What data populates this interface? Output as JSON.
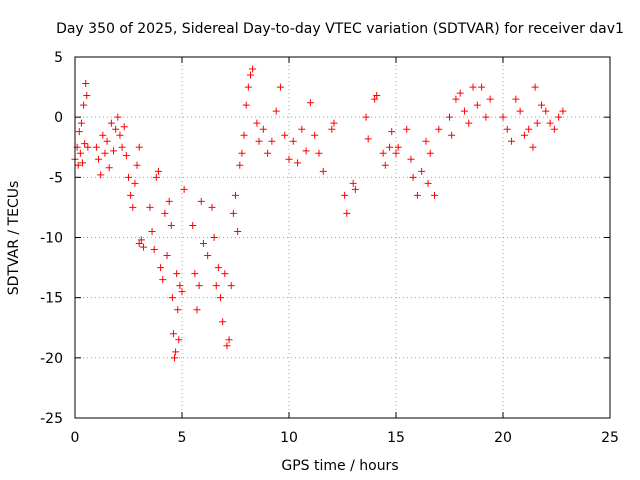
{
  "chart_data": {
    "type": "scatter",
    "title": "Day 350 of 2025, Sidereal Day-to-day VTEC variation (SDTVAR) for receiver dav1",
    "xlabel": "GPS time / hours",
    "ylabel": "SDTVAR / TECUs",
    "xlim": [
      0,
      25
    ],
    "ylim": [
      -25,
      5
    ],
    "xticks": [
      0,
      5,
      10,
      15,
      20,
      25
    ],
    "yticks": [
      5,
      0,
      -5,
      -10,
      -15,
      -20,
      -25
    ],
    "grid": true,
    "marker": "+",
    "series": [
      {
        "name": "SDTVAR",
        "color": "#ff0000",
        "points": [
          [
            0.0,
            -3.5
          ],
          [
            0.1,
            -2.5
          ],
          [
            0.15,
            -4.0
          ],
          [
            0.2,
            -1.2
          ],
          [
            0.25,
            -3.0
          ],
          [
            0.3,
            -0.5
          ],
          [
            0.35,
            -3.8
          ],
          [
            0.4,
            1.0
          ],
          [
            0.45,
            -2.2
          ],
          [
            0.5,
            2.8
          ],
          [
            0.55,
            1.8
          ],
          [
            0.6,
            -2.5
          ],
          [
            1.0,
            -2.5
          ],
          [
            1.1,
            -3.5
          ],
          [
            1.2,
            -4.8
          ],
          [
            1.3,
            -1.5
          ],
          [
            1.4,
            -3.0
          ],
          [
            1.5,
            -2.0
          ],
          [
            1.6,
            -4.2
          ],
          [
            1.7,
            -0.5
          ],
          [
            1.8,
            -2.8
          ],
          [
            1.9,
            -1.0
          ],
          [
            2.0,
            0.0
          ],
          [
            2.1,
            -1.5
          ],
          [
            2.2,
            -2.5
          ],
          [
            2.3,
            -0.8
          ],
          [
            2.4,
            -3.2
          ],
          [
            2.5,
            -5.0
          ],
          [
            2.6,
            -6.5
          ],
          [
            2.7,
            -7.5
          ],
          [
            2.8,
            -5.5
          ],
          [
            2.9,
            -4.0
          ],
          [
            3.0,
            -2.5
          ],
          [
            3.0,
            -10.5
          ],
          [
            3.1,
            -10.2
          ],
          [
            3.2,
            -10.8
          ],
          [
            3.5,
            -7.5
          ],
          [
            3.6,
            -9.5
          ],
          [
            3.7,
            -11.0
          ],
          [
            3.8,
            -5.0
          ],
          [
            3.9,
            -4.5
          ],
          [
            4.0,
            -12.5
          ],
          [
            4.1,
            -13.5
          ],
          [
            4.2,
            -8.0
          ],
          [
            4.3,
            -11.5
          ],
          [
            4.4,
            -7.0
          ],
          [
            4.5,
            -9.0
          ],
          [
            4.55,
            -15.0
          ],
          [
            4.6,
            -18.0
          ],
          [
            4.65,
            -20.0
          ],
          [
            4.7,
            -19.5
          ],
          [
            4.75,
            -13.0
          ],
          [
            4.8,
            -16.0
          ],
          [
            4.85,
            -18.5
          ],
          [
            4.9,
            -14.0
          ],
          [
            5.0,
            -14.5
          ],
          [
            5.1,
            -6.0
          ],
          [
            5.5,
            -9.0
          ],
          [
            5.6,
            -13.0
          ],
          [
            5.7,
            -16.0
          ],
          [
            5.8,
            -14.0
          ],
          [
            5.9,
            -7.0
          ],
          [
            6.0,
            -10.5
          ],
          [
            6.2,
            -11.5
          ],
          [
            6.4,
            -7.5
          ],
          [
            6.5,
            -10.0
          ],
          [
            6.6,
            -14.0
          ],
          [
            6.7,
            -12.5
          ],
          [
            6.8,
            -15.0
          ],
          [
            6.9,
            -17.0
          ],
          [
            7.0,
            -13.0
          ],
          [
            7.1,
            -19.0
          ],
          [
            7.2,
            -18.5
          ],
          [
            7.3,
            -14.0
          ],
          [
            7.4,
            -8.0
          ],
          [
            7.5,
            -6.5
          ],
          [
            7.6,
            -9.5
          ],
          [
            7.7,
            -4.0
          ],
          [
            7.8,
            -3.0
          ],
          [
            7.9,
            -1.5
          ],
          [
            8.0,
            1.0
          ],
          [
            8.1,
            2.5
          ],
          [
            8.2,
            3.5
          ],
          [
            8.3,
            4.0
          ],
          [
            8.5,
            -0.5
          ],
          [
            8.6,
            -2.0
          ],
          [
            8.8,
            -1.0
          ],
          [
            9.0,
            -3.0
          ],
          [
            9.2,
            -2.0
          ],
          [
            9.4,
            0.5
          ],
          [
            9.6,
            2.5
          ],
          [
            9.8,
            -1.5
          ],
          [
            10.0,
            -3.5
          ],
          [
            10.2,
            -2.0
          ],
          [
            10.4,
            -3.8
          ],
          [
            10.6,
            -1.0
          ],
          [
            10.8,
            -2.8
          ],
          [
            11.0,
            1.2
          ],
          [
            11.2,
            -1.5
          ],
          [
            11.4,
            -3.0
          ],
          [
            11.6,
            -4.5
          ],
          [
            12.0,
            -1.0
          ],
          [
            12.1,
            -0.5
          ],
          [
            12.6,
            -6.5
          ],
          [
            12.7,
            -8.0
          ],
          [
            13.0,
            -5.5
          ],
          [
            13.1,
            -6.0
          ],
          [
            13.6,
            0.0
          ],
          [
            13.7,
            -1.8
          ],
          [
            14.0,
            1.5
          ],
          [
            14.1,
            1.8
          ],
          [
            14.4,
            -3.0
          ],
          [
            14.5,
            -4.0
          ],
          [
            14.7,
            -2.5
          ],
          [
            14.8,
            -1.2
          ],
          [
            15.0,
            -3.0
          ],
          [
            15.1,
            -2.5
          ],
          [
            15.5,
            -1.0
          ],
          [
            15.7,
            -3.5
          ],
          [
            15.8,
            -5.0
          ],
          [
            16.0,
            -6.5
          ],
          [
            16.2,
            -4.5
          ],
          [
            16.4,
            -2.0
          ],
          [
            16.5,
            -5.5
          ],
          [
            16.6,
            -3.0
          ],
          [
            16.8,
            -6.5
          ],
          [
            17.0,
            -1.0
          ],
          [
            17.5,
            0.0
          ],
          [
            17.6,
            -1.5
          ],
          [
            17.8,
            1.5
          ],
          [
            18.0,
            2.0
          ],
          [
            18.2,
            0.5
          ],
          [
            18.4,
            -0.5
          ],
          [
            18.6,
            2.5
          ],
          [
            18.8,
            1.0
          ],
          [
            19.0,
            2.5
          ],
          [
            19.2,
            0.0
          ],
          [
            19.4,
            1.5
          ],
          [
            20.0,
            0.0
          ],
          [
            20.2,
            -1.0
          ],
          [
            20.4,
            -2.0
          ],
          [
            20.6,
            1.5
          ],
          [
            20.8,
            0.5
          ],
          [
            21.0,
            -1.5
          ],
          [
            21.2,
            -1.0
          ],
          [
            21.4,
            -2.5
          ],
          [
            21.5,
            2.5
          ],
          [
            21.6,
            -0.5
          ],
          [
            21.8,
            1.0
          ],
          [
            22.0,
            0.5
          ],
          [
            22.2,
            -0.5
          ],
          [
            22.4,
            -1.0
          ],
          [
            22.6,
            0.0
          ],
          [
            22.8,
            0.5
          ]
        ]
      }
    ]
  }
}
